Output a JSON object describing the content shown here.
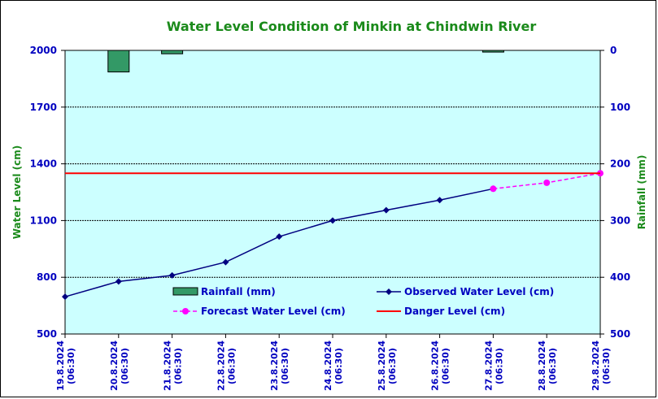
{
  "chart_data": {
    "type": "line",
    "title": "Water Level Condition of Minkin at Chindwin River",
    "ylabel": "Water Level (cm)",
    "y2label": "Rainfall (mm)",
    "ylim": [
      500,
      2000
    ],
    "y2lim": [
      0,
      500
    ],
    "yticks": [
      500,
      800,
      1100,
      1400,
      1700,
      2000
    ],
    "y2ticks": [
      0,
      100,
      200,
      300,
      400,
      500
    ],
    "categories": [
      {
        "date": "19.8.2024",
        "time": "(06:30)"
      },
      {
        "date": "20.8.2024",
        "time": "(06:30)"
      },
      {
        "date": "21.8.2024",
        "time": "(06:30)"
      },
      {
        "date": "22.8.2024",
        "time": "(06:30)"
      },
      {
        "date": "23.8.2024",
        "time": "(06:30)"
      },
      {
        "date": "24.8.2024",
        "time": "(06:30)"
      },
      {
        "date": "25.8.2024",
        "time": "(06:30)"
      },
      {
        "date": "26.8.2024",
        "time": "(06:30)"
      },
      {
        "date": "27.8.2024",
        "time": "(06:30)"
      },
      {
        "date": "28.8.2024",
        "time": "(06:30)"
      },
      {
        "date": "29.8.2024",
        "time": "(06:30)"
      }
    ],
    "series": [
      {
        "name": "Rainfall (mm)",
        "kind": "bar",
        "axis": "right",
        "color": "#339966",
        "values": [
          null,
          38,
          6,
          null,
          null,
          null,
          null,
          null,
          3,
          null,
          null
        ]
      },
      {
        "name": "Observed Water Level (cm)",
        "kind": "line",
        "color": "#000080",
        "values": [
          697,
          778,
          810,
          880,
          1015,
          1100,
          1155,
          1208,
          1268,
          null,
          null
        ]
      },
      {
        "name": "Forecast Water Level (cm)",
        "kind": "dashed-line",
        "color": "#ff00ff",
        "values": [
          null,
          null,
          null,
          null,
          null,
          null,
          null,
          null,
          1268,
          1300,
          1350
        ]
      },
      {
        "name": "Danger Level (cm)",
        "kind": "hline",
        "color": "#ff0000",
        "value": 1350
      }
    ],
    "grid": true,
    "legend": "inside-bottom"
  }
}
